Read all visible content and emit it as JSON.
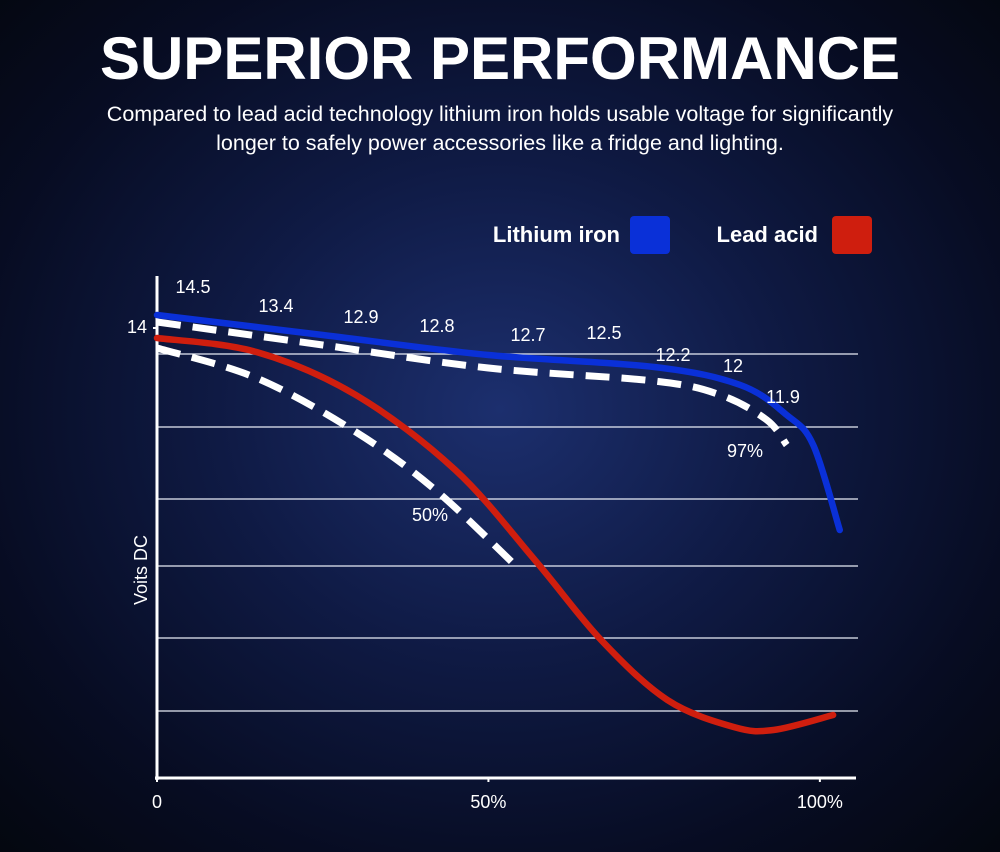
{
  "chart_data": {
    "type": "line",
    "title": "SUPERIOR PERFORMANCE",
    "subtitle": "Compared to lead acid technology lithium iron holds usable voltage for significantly longer to safely power accessories like a fridge and lighting.",
    "y_label": "Voits DC",
    "xlim": [
      0,
      105
    ],
    "ylim": [
      9.5,
      14.5
    ],
    "xticks": [
      0,
      {
        "value": 50,
        "label": "50%"
      },
      {
        "value": 100,
        "label": "100%"
      }
    ],
    "yticks": [
      14
    ],
    "series": [
      {
        "name": "Lithium iron",
        "color": "#0a30d8",
        "style": "solid",
        "x": [
          0,
          25,
          50,
          75,
          88,
          95,
          99,
          103
        ],
        "values": [
          14.13,
          13.93,
          13.73,
          13.61,
          13.43,
          13.13,
          12.83,
          11.98
        ]
      },
      {
        "name": "Lead acid",
        "color": "#cf1e0e",
        "style": "solid",
        "x": [
          0,
          15,
          30,
          45,
          57,
          67,
          77,
          87,
          93,
          102
        ],
        "values": [
          13.9,
          13.76,
          13.33,
          12.58,
          11.68,
          10.88,
          10.28,
          10.01,
          9.98,
          10.13
        ]
      }
    ],
    "dashed_series": [
      {
        "color": "#ffffff",
        "x": [
          0,
          25,
          50,
          75,
          85,
          92,
          95
        ],
        "values": [
          14.06,
          13.83,
          13.6,
          13.47,
          13.33,
          13.08,
          12.83
        ]
      },
      {
        "color": "#ffffff",
        "x": [
          0,
          15,
          30,
          42,
          54
        ],
        "values": [
          13.8,
          13.5,
          12.96,
          12.38,
          11.63
        ]
      }
    ],
    "annotations": [
      "14.5",
      "13.4",
      "12.9",
      "12.8",
      "12.7",
      "12.5",
      "12.2",
      "12",
      "11.9",
      "97%",
      "50%"
    ]
  }
}
